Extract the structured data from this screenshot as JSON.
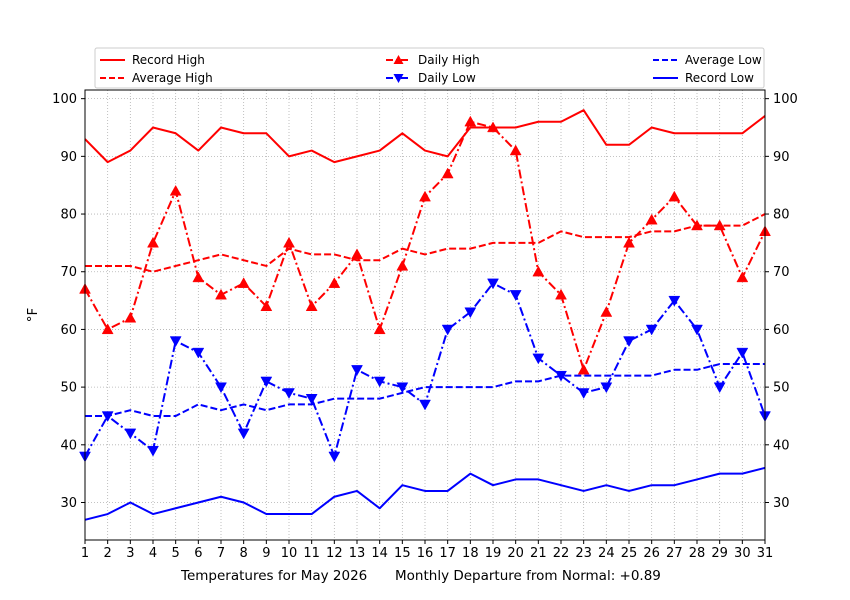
{
  "chart_data": {
    "type": "line",
    "title": "",
    "xlabel": "Temperatures for May 2026",
    "xlabel_note": "Monthly Departure from Normal: +0.89",
    "ylabel": "°F",
    "xlim": [
      1,
      31
    ],
    "ylim": [
      23.5,
      101.5
    ],
    "x": [
      1,
      2,
      3,
      4,
      5,
      6,
      7,
      8,
      9,
      10,
      11,
      12,
      13,
      14,
      15,
      16,
      17,
      18,
      19,
      20,
      21,
      22,
      23,
      24,
      25,
      26,
      27,
      28,
      29,
      30,
      31
    ],
    "x_ticks": [
      "1",
      "2",
      "3",
      "4",
      "5",
      "6",
      "7",
      "8",
      "9",
      "10",
      "11",
      "12",
      "13",
      "14",
      "15",
      "16",
      "17",
      "18",
      "19",
      "20",
      "21",
      "22",
      "23",
      "24",
      "25",
      "26",
      "27",
      "28",
      "29",
      "30",
      "31"
    ],
    "y_ticks": [
      "30",
      "40",
      "50",
      "60",
      "70",
      "80",
      "90",
      "100"
    ],
    "y_tick_values": [
      30,
      40,
      50,
      60,
      70,
      80,
      90,
      100
    ],
    "grid": true,
    "right_axis_mirrored": true,
    "legend_placement": "top (above plot, 3 columns)",
    "series": [
      {
        "name": "Record High",
        "color": "#ff0000",
        "style": "solid",
        "marker": "none",
        "values": [
          93,
          89,
          91,
          95,
          94,
          91,
          95,
          94,
          94,
          90,
          91,
          89,
          90,
          91,
          94,
          91,
          90,
          95,
          95,
          95,
          96,
          96,
          98,
          92,
          92,
          95,
          94,
          94,
          94,
          94,
          97
        ]
      },
      {
        "name": "Average High",
        "color": "#ff0000",
        "style": "dashed",
        "marker": "none",
        "values": [
          71,
          71,
          71,
          70,
          71,
          72,
          73,
          72,
          71,
          74,
          73,
          73,
          72,
          72,
          74,
          73,
          74,
          74,
          75,
          75,
          75,
          77,
          76,
          76,
          76,
          77,
          77,
          78,
          78,
          78,
          80
        ]
      },
      {
        "name": "Daily High",
        "color": "#ff0000",
        "style": "dashdot",
        "marker": "triangle-up",
        "values": [
          67,
          60,
          62,
          75,
          84,
          69,
          66,
          68,
          64,
          75,
          64,
          68,
          73,
          60,
          71,
          83,
          87,
          96,
          95,
          91,
          70,
          66,
          53,
          63,
          75,
          79,
          83,
          78,
          78,
          69,
          77
        ]
      },
      {
        "name": "Daily Low",
        "color": "#0000ff",
        "style": "dashdot",
        "marker": "triangle-down",
        "values": [
          38,
          45,
          42,
          39,
          58,
          56,
          50,
          42,
          51,
          49,
          48,
          38,
          53,
          51,
          50,
          47,
          60,
          63,
          68,
          66,
          55,
          52,
          49,
          50,
          58,
          60,
          65,
          60,
          50,
          56,
          45
        ]
      },
      {
        "name": "Average Low",
        "color": "#0000ff",
        "style": "dashed",
        "marker": "none",
        "values": [
          45,
          45,
          46,
          45,
          45,
          47,
          46,
          47,
          46,
          47,
          47,
          48,
          48,
          48,
          49,
          50,
          50,
          50,
          50,
          51,
          51,
          52,
          52,
          52,
          52,
          52,
          53,
          53,
          54,
          54,
          54
        ]
      },
      {
        "name": "Record Low",
        "color": "#0000ff",
        "style": "solid",
        "marker": "none",
        "values": [
          27,
          28,
          30,
          28,
          29,
          30,
          31,
          30,
          28,
          28,
          28,
          31,
          32,
          29,
          33,
          32,
          32,
          35,
          33,
          34,
          34,
          33,
          32,
          33,
          32,
          33,
          33,
          34,
          35,
          35,
          36
        ]
      }
    ]
  }
}
